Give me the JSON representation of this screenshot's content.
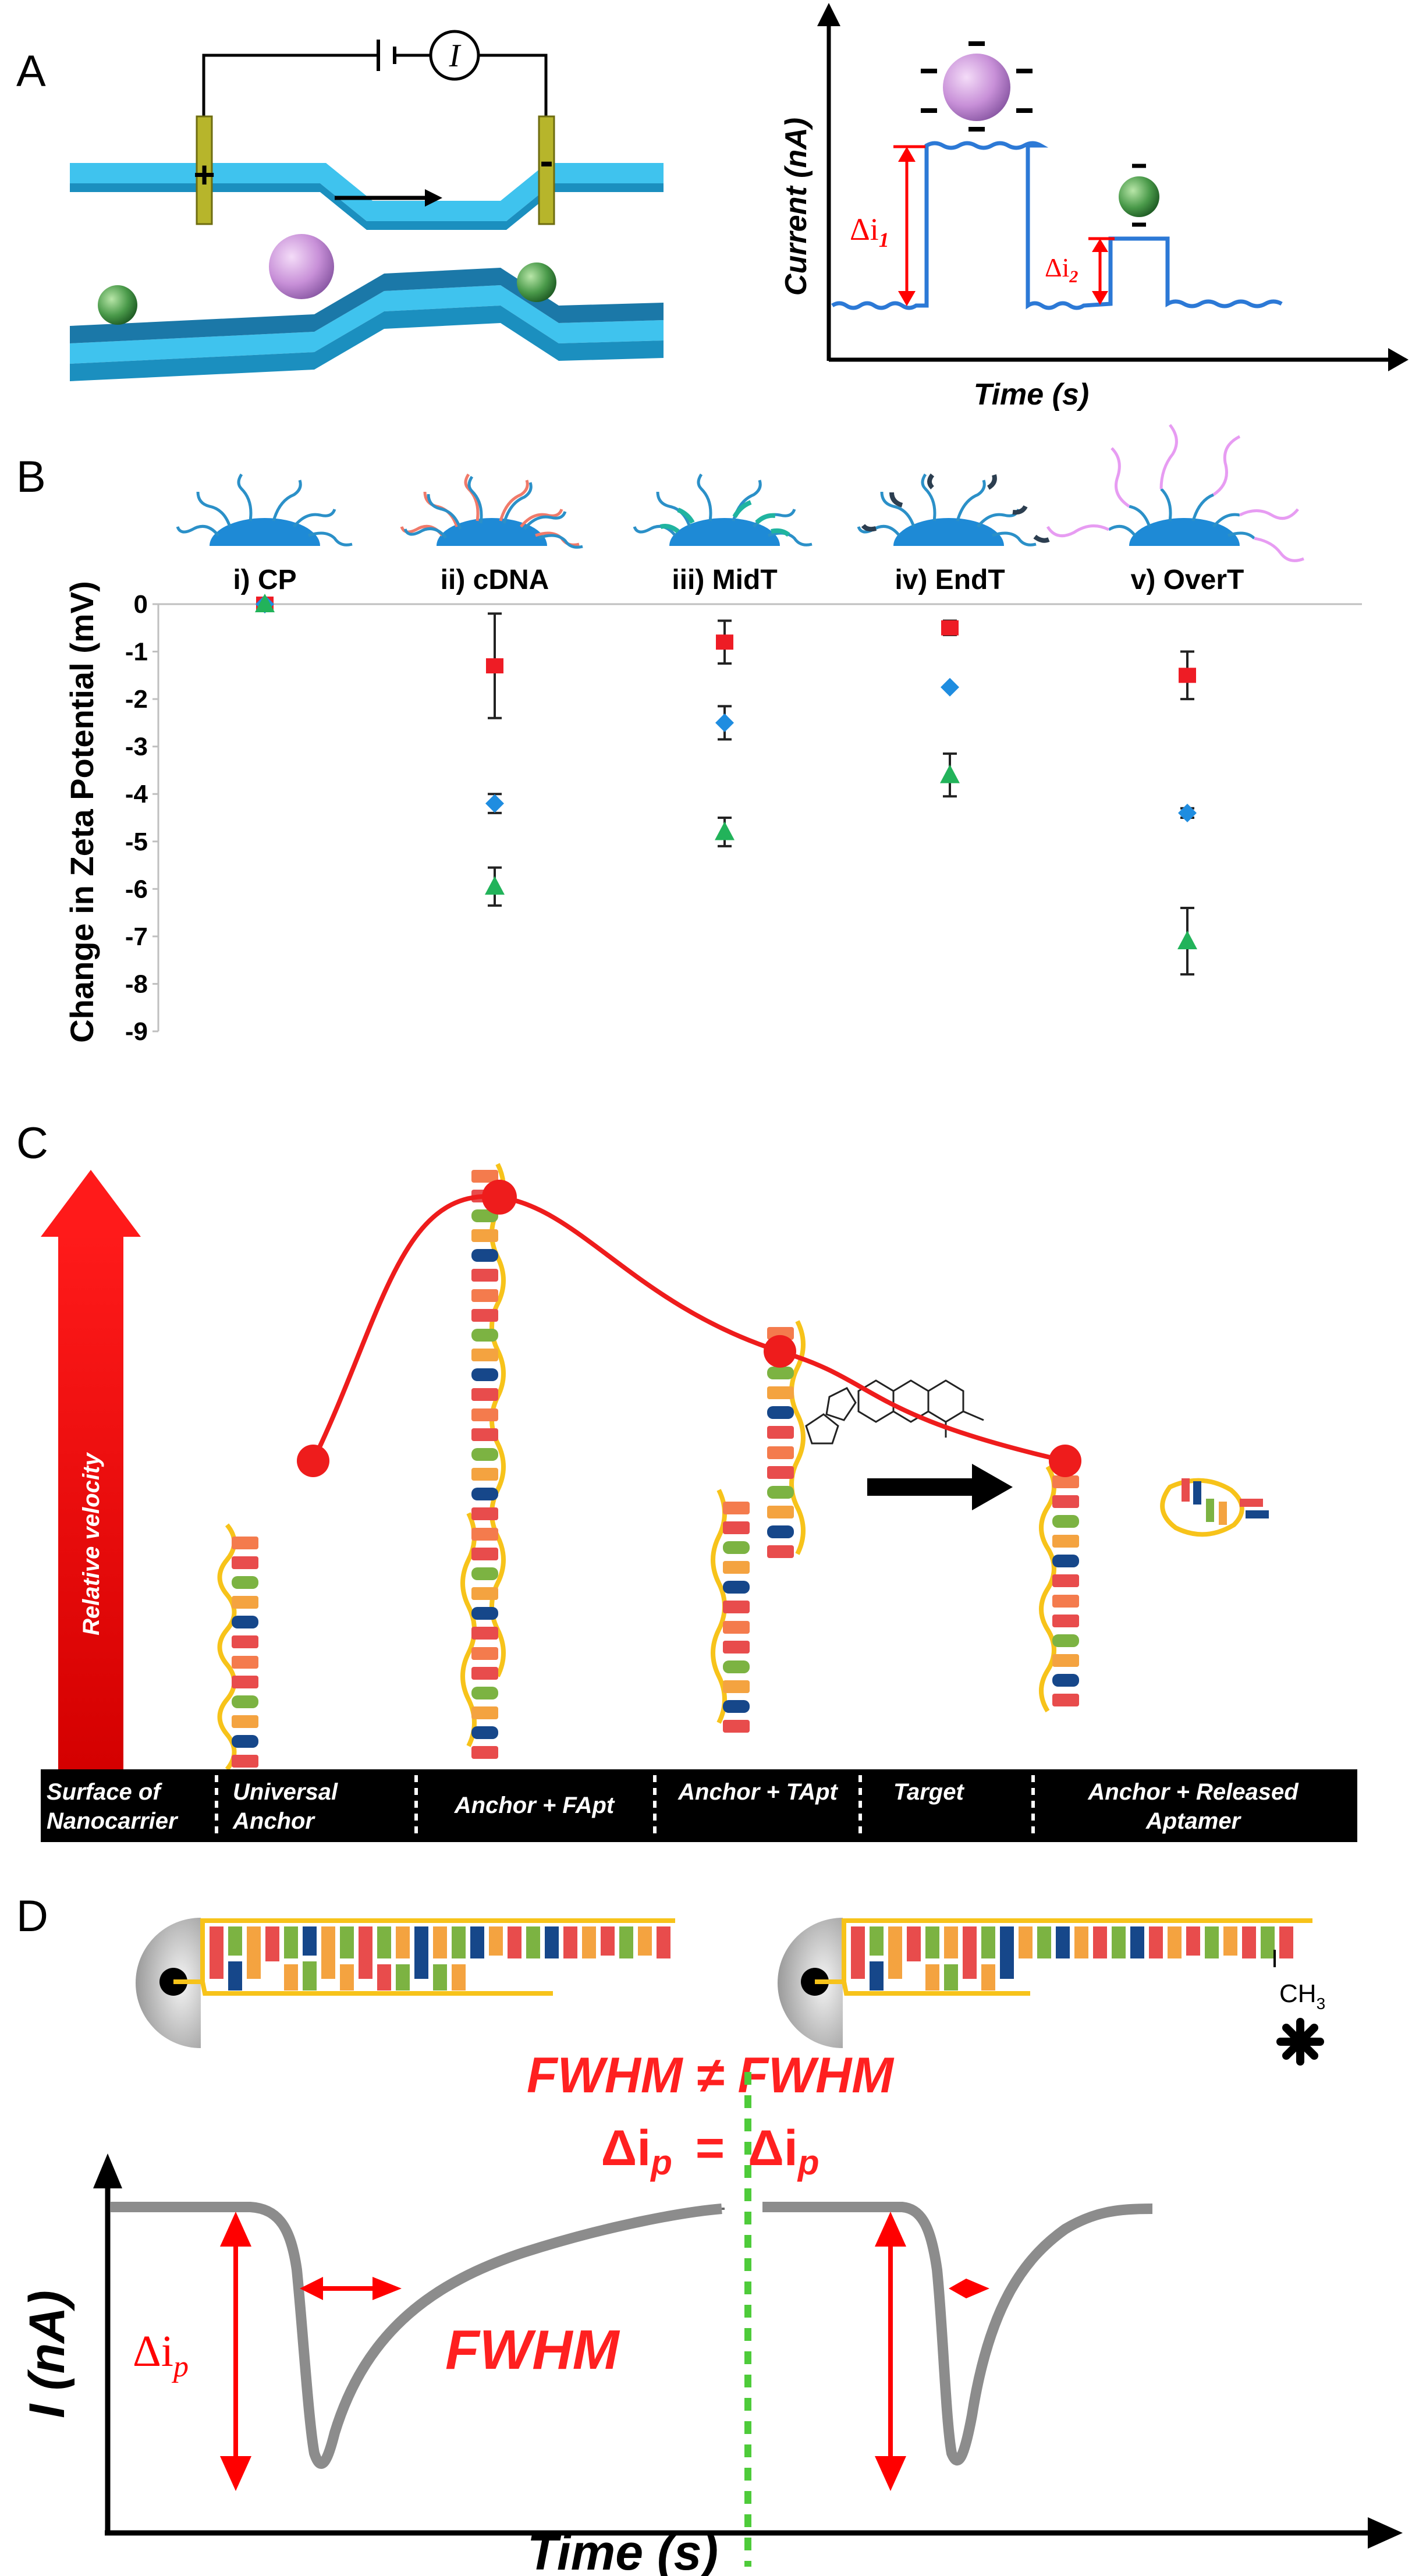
{
  "panels": {
    "a": {
      "label": "A",
      "axes": {
        "ylabel": "Current (nA)",
        "xlabel": "Time (s)"
      },
      "peak1": "Δi",
      "peak1_sub": "1",
      "peak2": "Δi",
      "peak2_sub": "2",
      "meter": "I",
      "plus": "+",
      "minus": "-"
    },
    "b": {
      "label": "B"
    },
    "c": {
      "label": "C",
      "arrow_label": "Relative velocity",
      "bar_labels": [
        {
          "l1": "Surface of",
          "l2": "Nanocarrier"
        },
        {
          "l1": "Universal",
          "l2": "Anchor"
        },
        {
          "l1": "Anchor + FApt",
          "l2": ""
        },
        {
          "l1": "Anchor + TApt",
          "l2": ""
        },
        {
          "l1": "Target",
          "l2": ""
        },
        {
          "l1": "Anchor + Released",
          "l2": "Aptamer"
        }
      ],
      "velocity": [
        1.0,
        3.65,
        2.1,
        1.0
      ]
    },
    "d": {
      "label": "D",
      "ch3": "CH",
      "ch3_sub": "3",
      "fwhm_compare": "FWHM ≠ FWHM",
      "dip_compare_left": "Δi",
      "dip_compare_sub": "p",
      "equals": "=",
      "dip_label": "Δi",
      "dip_label_sub": "p",
      "fwhm_label": "FWHM",
      "ylabel": "I (nA)",
      "xlabel": "Time (s)"
    }
  },
  "chart_data": {
    "type": "scatter",
    "title": "",
    "xlabel": "",
    "ylabel": "Change in Zeta Potential (mV)",
    "ylim": [
      -9,
      0
    ],
    "yticks": [
      0,
      -1,
      -2,
      -3,
      -4,
      -5,
      -6,
      -7,
      -8,
      -9
    ],
    "categories": [
      "i) CP",
      "ii) cDNA",
      "iii) MidT",
      "iv) EndT",
      "v) OverT"
    ],
    "series": [
      {
        "name": "series 1",
        "marker": "square",
        "color": "#ee1c25",
        "values": [
          0.0,
          -1.3,
          -0.8,
          -0.5,
          -1.5
        ],
        "errors": [
          0.05,
          1.1,
          0.45,
          0.15,
          0.5
        ]
      },
      {
        "name": "series 2",
        "marker": "diamond",
        "color": "#1f8de0",
        "values": [
          0.0,
          -4.2,
          -2.5,
          -1.75,
          -4.4
        ],
        "errors": [
          0.05,
          0.2,
          0.35,
          0.05,
          0.1
        ]
      },
      {
        "name": "series 3",
        "marker": "triangle",
        "color": "#22b35a",
        "values": [
          0.0,
          -5.95,
          -4.8,
          -3.6,
          -7.1
        ],
        "errors": [
          0.05,
          0.4,
          0.3,
          0.45,
          0.7
        ]
      }
    ]
  }
}
